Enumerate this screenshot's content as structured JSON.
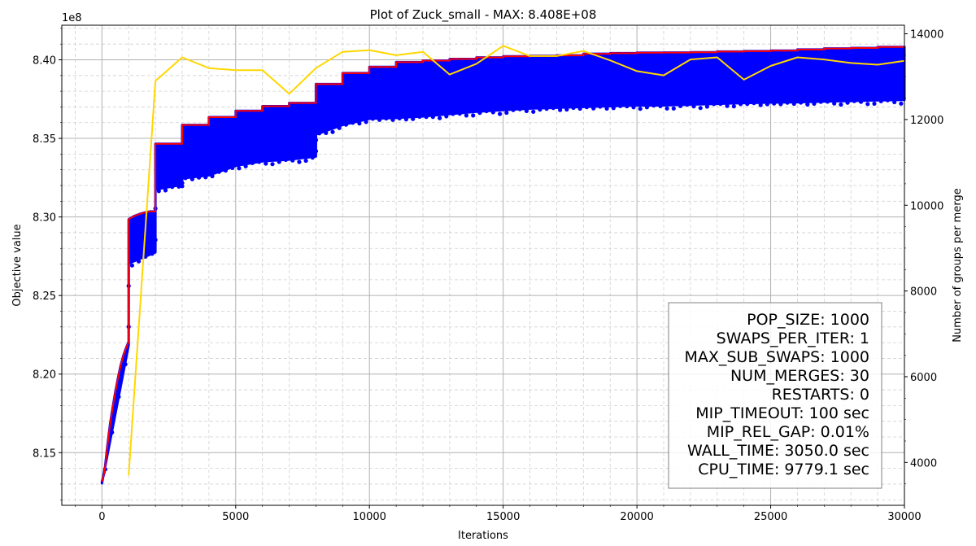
{
  "chart_data": {
    "type": "line",
    "title": "Plot of Zuck_small - MAX: 8.408E+08",
    "xlabel": "Iterations",
    "ylabel": "Objective value",
    "y2label": "Number of groups per merge",
    "offset_text": "1e8",
    "xlim": [
      -1500,
      30000
    ],
    "ylim": [
      8.1165,
      8.422
    ],
    "y2lim": [
      3000,
      14200
    ],
    "x_ticks": [
      0,
      5000,
      10000,
      15000,
      20000,
      25000,
      30000
    ],
    "y_ticks": [
      8.15,
      8.2,
      8.25,
      8.3,
      8.35,
      8.4
    ],
    "y2_ticks": [
      4000,
      6000,
      8000,
      10000,
      12000,
      14000
    ],
    "x_tick_labels": [
      "0",
      "5000",
      "10000",
      "15000",
      "20000",
      "25000",
      "30000"
    ],
    "y_tick_labels": [
      "8.15",
      "8.20",
      "8.25",
      "8.30",
      "8.35",
      "8.40"
    ],
    "y2_tick_labels": [
      "4000",
      "6000",
      "8000",
      "10000",
      "12000",
      "14000"
    ],
    "grid": true,
    "colors": {
      "max": "#ff0000",
      "points": "#0000ff",
      "groups": "#ffd700"
    },
    "max_series": {
      "x": [
        0,
        100,
        200,
        300,
        400,
        500,
        600,
        700,
        800,
        900,
        1000,
        1000,
        1200,
        1400,
        1600,
        1800,
        2000,
        2000,
        3000,
        3000,
        4000,
        4000,
        5000,
        5000,
        6000,
        6000,
        7000,
        7000,
        8000,
        8000,
        9000,
        9000,
        10000,
        10000,
        11000,
        11000,
        12000,
        12000,
        13000,
        13000,
        14000,
        14000,
        15000,
        15000,
        16000,
        16000,
        17000,
        17000,
        18000,
        18000,
        19000,
        19000,
        20000,
        20000,
        21000,
        21000,
        22000,
        22000,
        23000,
        23000,
        24000,
        24000,
        25000,
        25000,
        26000,
        26000,
        27000,
        27000,
        28000,
        28000,
        29000,
        29000,
        30000
      ],
      "y": [
        8.1315,
        8.138,
        8.1535,
        8.1675,
        8.1785,
        8.1885,
        8.1975,
        8.2055,
        8.2115,
        8.2165,
        8.2205,
        8.2985,
        8.3005,
        8.3018,
        8.3028,
        8.3035,
        8.3035,
        8.3465,
        8.3465,
        8.3585,
        8.3585,
        8.3635,
        8.3635,
        8.3675,
        8.3675,
        8.3705,
        8.3705,
        8.3725,
        8.3725,
        8.3845,
        8.3845,
        8.3915,
        8.3915,
        8.3955,
        8.3955,
        8.3985,
        8.3985,
        8.3995,
        8.3995,
        8.4005,
        8.4005,
        8.4015,
        8.4015,
        8.4022,
        8.4022,
        8.4025,
        8.4025,
        8.4028,
        8.4028,
        8.4038,
        8.4038,
        8.4042,
        8.4042,
        8.4045,
        8.4045,
        8.4046,
        8.4046,
        8.4048,
        8.4048,
        8.4052,
        8.4052,
        8.4055,
        8.4055,
        8.4058,
        8.4058,
        8.4065,
        8.4065,
        8.4072,
        8.4072,
        8.4075,
        8.4075,
        8.4082,
        8.4082
      ]
    },
    "population_band": {
      "x": [
        0,
        1000,
        1001,
        2000,
        2001,
        3000,
        3001,
        4000,
        5000,
        6000,
        7000,
        8000,
        8001,
        9000,
        10000,
        11000,
        12000,
        13000,
        14000,
        15000,
        16000,
        17000,
        18000,
        19000,
        20000,
        21000,
        22000,
        23000,
        24000,
        25000,
        26000,
        27000,
        28000,
        29000,
        30000
      ],
      "low": [
        8.1305,
        8.2185,
        8.2705,
        8.2775,
        8.3175,
        8.3205,
        8.3245,
        8.3265,
        8.3325,
        8.3355,
        8.3365,
        8.3385,
        8.3525,
        8.3585,
        8.3625,
        8.363,
        8.364,
        8.3655,
        8.367,
        8.368,
        8.369,
        8.3695,
        8.37,
        8.3705,
        8.371,
        8.371,
        8.3715,
        8.372,
        8.3725,
        8.3728,
        8.373,
        8.3735,
        8.3738,
        8.3742,
        8.3745
      ]
    },
    "groups_series": {
      "x": [
        1000,
        2000,
        3000,
        4000,
        5000,
        6000,
        7000,
        8000,
        9000,
        10000,
        11000,
        12000,
        13000,
        14000,
        15000,
        16000,
        17000,
        18000,
        19000,
        20000,
        21000,
        22000,
        23000,
        24000,
        25000,
        26000,
        27000,
        28000,
        29000,
        30000
      ],
      "y": [
        3700,
        12900,
        13450,
        13200,
        13150,
        13150,
        12600,
        13200,
        13580,
        13620,
        13500,
        13580,
        13050,
        13300,
        13720,
        13480,
        13480,
        13600,
        13380,
        13130,
        13030,
        13400,
        13450,
        12930,
        13250,
        13450,
        13400,
        13320,
        13280,
        13370
      ]
    }
  },
  "legend_box": {
    "lines": [
      "POP_SIZE: 1000",
      "SWAPS_PER_ITER: 1",
      "MAX_SUB_SWAPS: 1000",
      "NUM_MERGES: 30",
      "RESTARTS: 0",
      "MIP_TIMEOUT: 100 sec",
      "MIP_REL_GAP: 0.01%",
      "WALL_TIME: 3050.0 sec",
      "CPU_TIME: 9779.1 sec"
    ]
  }
}
